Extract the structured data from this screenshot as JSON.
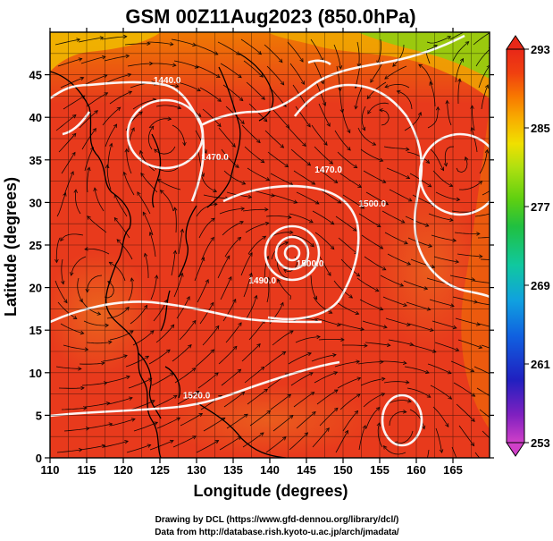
{
  "title": "GSM 00Z11Aug2023 (850.0hPa)",
  "xaxis": {
    "label": "Longitude (degrees)",
    "ticks": [
      "110",
      "115",
      "120",
      "125",
      "130",
      "135",
      "140",
      "145",
      "150",
      "155",
      "160",
      "165"
    ],
    "range": [
      110,
      170
    ]
  },
  "yaxis": {
    "label": "Latitude  (degrees)",
    "ticks": [
      "0",
      "5",
      "10",
      "15",
      "20",
      "25",
      "30",
      "35",
      "40",
      "45"
    ],
    "range": [
      0,
      50
    ]
  },
  "colorbar": {
    "ticks": [
      "293",
      "285",
      "277",
      "269",
      "261",
      "253"
    ],
    "min": 253,
    "max": 293,
    "colors": [
      "#d040c8",
      "#8020c0",
      "#2020c0",
      "#1060e0",
      "#10a0e0",
      "#10c8a0",
      "#20c040",
      "#60d010",
      "#b0e010",
      "#f0e000",
      "#f8b000",
      "#f87800",
      "#f04010",
      "#e82818"
    ]
  },
  "contour_labels": [
    {
      "text": "1440.0",
      "lon": 126,
      "lat": 44
    },
    {
      "text": "1470.0",
      "lon": 132.5,
      "lat": 35
    },
    {
      "text": "1470.0",
      "lon": 148,
      "lat": 33.5
    },
    {
      "text": "1500.0",
      "lon": 154,
      "lat": 29.5
    },
    {
      "text": "1500.0",
      "lon": 145.5,
      "lat": 22.5
    },
    {
      "text": "1490.0",
      "lon": 139,
      "lat": 20.5
    },
    {
      "text": "1520.0",
      "lon": 130,
      "lat": 7
    }
  ],
  "credits": [
    "Drawing by DCL (https://www.gfd-dennou.org/library/dcl/)",
    "Data from http://database.rish.kyoto-u.ac.jp/arch/jmadata/"
  ]
}
